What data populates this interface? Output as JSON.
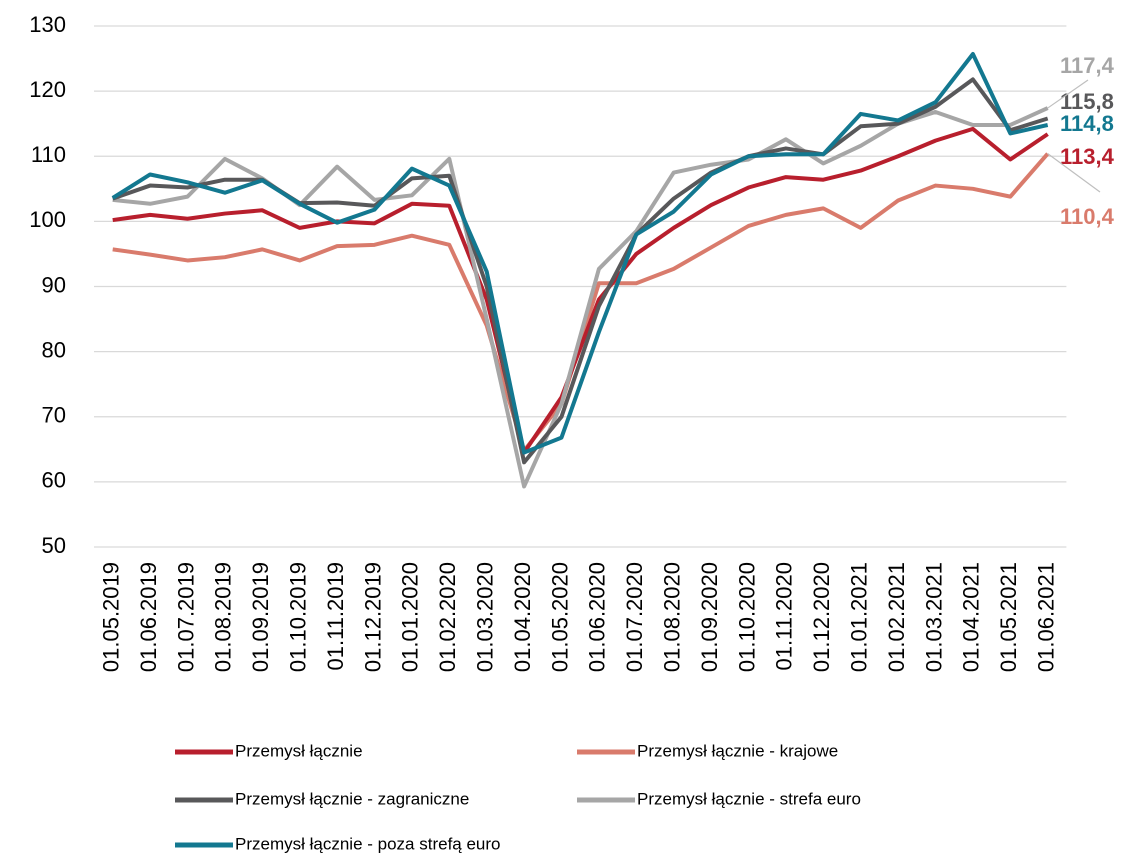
{
  "chart_data": {
    "type": "line",
    "categories": [
      "01.05.2019",
      "01.06.2019",
      "01.07.2019",
      "01.08.2019",
      "01.09.2019",
      "01.10.2019",
      "01.11.2019",
      "01.12.2019",
      "01.01.2020",
      "01.02.2020",
      "01.03.2020",
      "01.04.2020",
      "01.05.2020",
      "01.06.2020",
      "01.07.2020",
      "01.08.2020",
      "01.09.2020",
      "01.10.2020",
      "01.11.2020",
      "01.12.2020",
      "01.01.2021",
      "01.02.2021",
      "01.03.2021",
      "01.04.2021",
      "01.05.2021",
      "01.06.2021"
    ],
    "series": [
      {
        "name": "Przemysł łącznie",
        "color": "#b81f2d",
        "values": [
          100.2,
          101,
          100.4,
          101.2,
          101.7,
          99,
          100,
          99.7,
          102.7,
          102.4,
          88,
          64.5,
          73,
          88,
          95,
          99,
          102.5,
          105.2,
          106.8,
          106.4,
          107.8,
          110,
          112.4,
          114.2,
          109.5,
          113.4
        ],
        "value_labels": [
          null,
          null,
          null,
          null,
          null,
          null,
          null,
          null,
          null,
          null,
          null,
          null,
          null,
          null,
          null,
          null,
          null,
          null,
          null,
          null,
          null,
          null,
          null,
          null,
          null,
          "113,4"
        ]
      },
      {
        "name": "Przemysł łącznie - krajowe",
        "color": "#d97b6c",
        "values": [
          95.7,
          94.9,
          94,
          94.5,
          95.7,
          94,
          96.2,
          96.4,
          97.8,
          96.4,
          84,
          64.8,
          72,
          90.5,
          90.5,
          92.7,
          96,
          99.3,
          101,
          102,
          99,
          103.2,
          105.5,
          105,
          103.8,
          110.4
        ],
        "value_labels": [
          null,
          null,
          null,
          null,
          null,
          null,
          null,
          null,
          null,
          null,
          null,
          null,
          null,
          null,
          null,
          null,
          null,
          null,
          null,
          null,
          null,
          null,
          null,
          null,
          null,
          "110,4"
        ]
      },
      {
        "name": "Przemysł łącznie - zagraniczne",
        "color": "#58585a",
        "values": [
          103.5,
          105.5,
          105.2,
          106.4,
          106.4,
          102.8,
          102.9,
          102.4,
          106.6,
          107,
          90,
          63,
          70,
          87,
          98,
          103.5,
          107.5,
          110,
          111.2,
          110.3,
          114.6,
          115,
          117.6,
          121.8,
          114,
          115.8
        ],
        "value_labels": [
          null,
          null,
          null,
          null,
          null,
          null,
          null,
          null,
          null,
          null,
          null,
          null,
          null,
          null,
          null,
          null,
          null,
          null,
          null,
          null,
          null,
          null,
          null,
          null,
          null,
          "115,8"
        ]
      },
      {
        "name": "Przemysł łącznie - strefa euro",
        "color": "#a6a6a6",
        "values": [
          103.3,
          102.7,
          103.8,
          109.6,
          106.6,
          102.5,
          108.4,
          103.3,
          104,
          109.6,
          85,
          59.3,
          72,
          92.7,
          98.5,
          107.5,
          108.7,
          109.5,
          112.6,
          108.9,
          111.6,
          115,
          116.8,
          114.8,
          114.8,
          117.4
        ],
        "value_labels": [
          null,
          null,
          null,
          null,
          null,
          null,
          null,
          null,
          null,
          null,
          null,
          null,
          null,
          null,
          null,
          null,
          null,
          null,
          null,
          null,
          null,
          null,
          null,
          null,
          null,
          "117,4"
        ]
      },
      {
        "name": "Przemysł łącznie - poza strefą euro",
        "color": "#137890",
        "values": [
          103.6,
          107.2,
          106,
          104.4,
          106.3,
          102.7,
          99.8,
          101.8,
          108.1,
          105.5,
          92.3,
          64.5,
          66.8,
          83,
          98,
          101.5,
          107.2,
          110,
          110.3,
          110.3,
          116.5,
          115.5,
          118.3,
          125.7,
          113.5,
          114.8
        ],
        "value_labels": [
          null,
          null,
          null,
          null,
          null,
          null,
          null,
          null,
          null,
          null,
          null,
          null,
          null,
          null,
          null,
          null,
          null,
          null,
          null,
          null,
          null,
          null,
          null,
          null,
          null,
          "114,8"
        ]
      }
    ],
    "ylim": [
      50,
      130
    ],
    "yticks": [
      50,
      60,
      70,
      80,
      90,
      100,
      110,
      120,
      130
    ],
    "grid": true
  }
}
